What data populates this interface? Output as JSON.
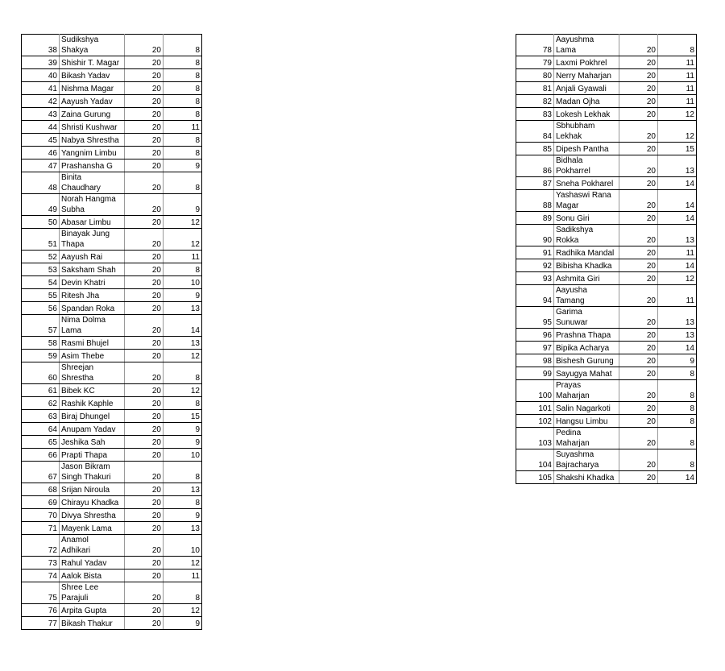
{
  "left_table": {
    "rows": [
      [
        "38",
        "Sudikshya\nShakya",
        "20",
        "8"
      ],
      [
        "39",
        "Shishir T. Magar",
        "20",
        "8"
      ],
      [
        "40",
        "Bikash Yadav",
        "20",
        "8"
      ],
      [
        "41",
        "Nishma Magar",
        "20",
        "8"
      ],
      [
        "42",
        "Aayush Yadav",
        "20",
        "8"
      ],
      [
        "43",
        "Zaina Gurung",
        "20",
        "8"
      ],
      [
        "44",
        "Shristi Kushwar",
        "20",
        "11"
      ],
      [
        "45",
        "Nabya Shrestha",
        "20",
        "8"
      ],
      [
        "46",
        "Yangnim Limbu",
        "20",
        "8"
      ],
      [
        "47",
        "Prashansha G",
        "20",
        "9"
      ],
      [
        "48",
        "Binita\nChaudhary",
        "20",
        "8"
      ],
      [
        "49",
        "Norah Hangma\nSubha",
        "20",
        "9"
      ],
      [
        "50",
        "Abasar Limbu",
        "20",
        "12"
      ],
      [
        "51",
        "Binayak Jung\nThapa",
        "20",
        "12"
      ],
      [
        "52",
        "Aayush Rai",
        "20",
        "11"
      ],
      [
        "53",
        "Saksham Shah",
        "20",
        "8"
      ],
      [
        "54",
        "Devin Khatri",
        "20",
        "10"
      ],
      [
        "55",
        "Ritesh Jha",
        "20",
        "9"
      ],
      [
        "56",
        "Spandan Roka",
        "20",
        "13"
      ],
      [
        "57",
        "Nima Dolma\nLama",
        "20",
        "14"
      ],
      [
        "58",
        "Rasmi Bhujel",
        "20",
        "13"
      ],
      [
        "59",
        "Asim Thebe",
        "20",
        "12"
      ],
      [
        "60",
        "Shreejan\nShrestha",
        "20",
        "8"
      ],
      [
        "61",
        "Bibek KC",
        "20",
        "12"
      ],
      [
        "62",
        "Rashik Kaphle",
        "20",
        "8"
      ],
      [
        "63",
        "Biraj Dhungel",
        "20",
        "15"
      ],
      [
        "64",
        "Anupam Yadav",
        "20",
        "9"
      ],
      [
        "65",
        "Jeshika Sah",
        "20",
        "9"
      ],
      [
        "66",
        "Prapti Thapa",
        "20",
        "10"
      ],
      [
        "67",
        "Jason Bikram\nSingh Thakuri",
        "20",
        "8"
      ],
      [
        "68",
        "Srijan Niroula",
        "20",
        "13"
      ],
      [
        "69",
        "Chirayu Khadka",
        "20",
        "8"
      ],
      [
        "70",
        "Divya Shrestha",
        "20",
        "9"
      ],
      [
        "71",
        "Mayenk Lama",
        "20",
        "13"
      ],
      [
        "72",
        "Anamol\nAdhikari",
        "20",
        "10"
      ],
      [
        "73",
        "Rahul Yadav",
        "20",
        "12"
      ],
      [
        "74",
        "Aalok Bista",
        "20",
        "11"
      ],
      [
        "75",
        "Shree Lee\nParajuli",
        "20",
        "8"
      ],
      [
        "76",
        "Arpita Gupta",
        "20",
        "12"
      ],
      [
        "77",
        "Bikash Thakur",
        "20",
        "9"
      ]
    ]
  },
  "right_table": {
    "rows": [
      [
        "78",
        "Aayushma\nLama",
        "20",
        "8"
      ],
      [
        "79",
        "Laxmi Pokhrel",
        "20",
        "11"
      ],
      [
        "80",
        "Nerry Maharjan",
        "20",
        "11"
      ],
      [
        "81",
        "Anjali Gyawali",
        "20",
        "11"
      ],
      [
        "82",
        "Madan Ojha",
        "20",
        "11"
      ],
      [
        "83",
        "Lokesh Lekhak",
        "20",
        "12"
      ],
      [
        "84",
        "Sbhubham\nLekhak",
        "20",
        "12"
      ],
      [
        "85",
        "Dipesh Pantha",
        "20",
        "15"
      ],
      [
        "86",
        "Bidhala\nPokharrel",
        "20",
        "13"
      ],
      [
        "87",
        "Sneha Pokharel",
        "20",
        "14"
      ],
      [
        "88",
        "Yashaswi Rana\nMagar",
        "20",
        "14"
      ],
      [
        "89",
        "Sonu Giri",
        "20",
        "14"
      ],
      [
        "90",
        "Sadikshya\nRokka",
        "20",
        "13"
      ],
      [
        "91",
        "Radhika Mandal",
        "20",
        "11"
      ],
      [
        "92",
        "Bibisha Khadka",
        "20",
        "14"
      ],
      [
        "93",
        "Ashmita Giri",
        "20",
        "12"
      ],
      [
        "94",
        "Aayusha\nTamang",
        "20",
        "11"
      ],
      [
        "95",
        "Garima\nSunuwar",
        "20",
        "13"
      ],
      [
        "96",
        "Prashna Thapa",
        "20",
        "13"
      ],
      [
        "97",
        "Bipika Acharya",
        "20",
        "14"
      ],
      [
        "98",
        "Bishesh Gurung",
        "20",
        "9"
      ],
      [
        "99",
        "Sayugya Mahat",
        "20",
        "8"
      ],
      [
        "100",
        "Prayas\nMaharjan",
        "20",
        "8"
      ],
      [
        "101",
        "Salin Nagarkoti",
        "20",
        "8"
      ],
      [
        "102",
        "Hangsu Limbu",
        "20",
        "8"
      ],
      [
        "103",
        "Pedina\nMaharjan",
        "20",
        "8"
      ],
      [
        "104",
        "Suyashma\nBajracharya",
        "20",
        "8"
      ],
      [
        "105",
        "Shakshi Khadka",
        "20",
        "14"
      ]
    ]
  }
}
